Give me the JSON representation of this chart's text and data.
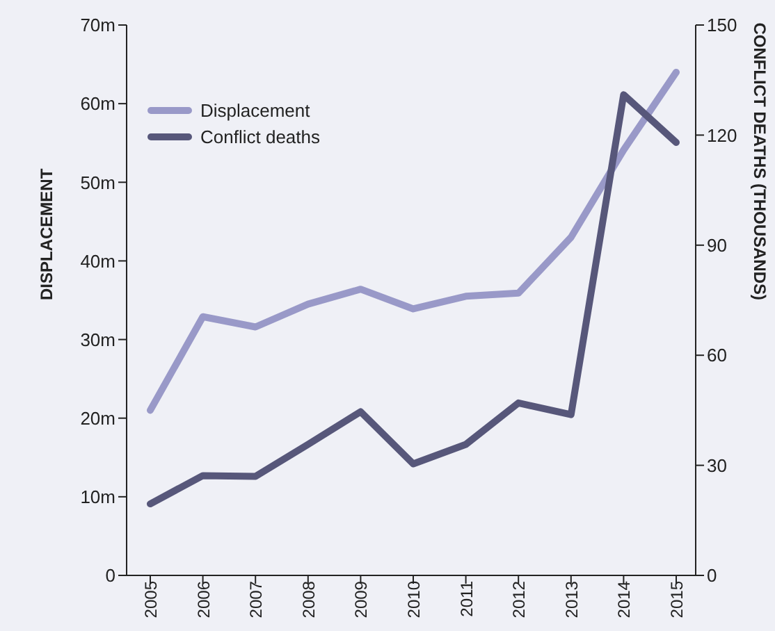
{
  "chart_data": {
    "type": "line",
    "xlabel": null,
    "ylabel": "DISPLACEMENT",
    "y2label": "CONFLICT DEATHS (THOUSANDS)",
    "categories": [
      "2005",
      "2006",
      "2007",
      "2008",
      "2009",
      "2010",
      "2011",
      "2012",
      "2013",
      "2014",
      "2015"
    ],
    "series": [
      {
        "name": "Displacement",
        "color": "#9999c8",
        "values": [
          21,
          32.9,
          31.6,
          34.5,
          36.4,
          33.9,
          35.5,
          35.9,
          43,
          54.1,
          64
        ]
      },
      {
        "name": "Conflict deaths",
        "color": "#57577a",
        "axis": "y2",
        "values": [
          19.5,
          27.2,
          27,
          35.7,
          44.6,
          30.4,
          35.7,
          47,
          43.8,
          131,
          118
        ]
      }
    ],
    "ylim": [
      0,
      70
    ],
    "yticks": [
      {
        "value": 0,
        "label": "0"
      },
      {
        "value": 10,
        "label": "10m"
      },
      {
        "value": 20,
        "label": "20m"
      },
      {
        "value": 30,
        "label": "30m"
      },
      {
        "value": 40,
        "label": "40m"
      },
      {
        "value": 50,
        "label": "50m"
      },
      {
        "value": 60,
        "label": "60m"
      },
      {
        "value": 70,
        "label": "70m"
      }
    ],
    "y2lim": [
      0,
      150
    ],
    "y2ticks": [
      0,
      30,
      60,
      90,
      120,
      150
    ],
    "grid": false,
    "legend": "top left",
    "marker": "none",
    "line_style": "solid"
  }
}
